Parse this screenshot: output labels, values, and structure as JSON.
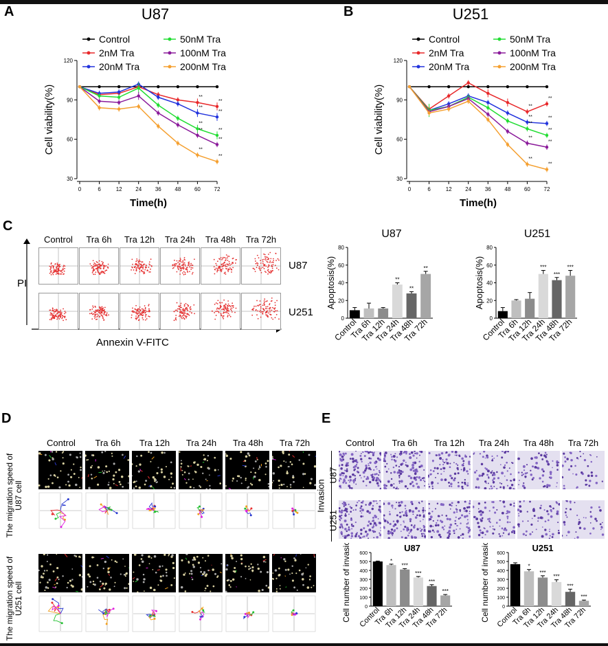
{
  "panels": {
    "A": "A",
    "B": "B",
    "C": "C",
    "D": "D",
    "E": "E"
  },
  "legend": [
    "Control",
    "2nM Tra",
    "20nM Tra",
    "50nM Tra",
    "100nM Tra",
    "200nM Tra"
  ],
  "colors": {
    "Control": "#000000",
    "2nM Tra": "#e8282a",
    "20nM Tra": "#2233dd",
    "50nM Tra": "#22dd33",
    "100nM Tra": "#8a1a9a",
    "200nM Tra": "#f5a030",
    "magenta": "#e020e0",
    "bar_black": "#000000",
    "bar_light": "#d8d8d8",
    "bar_mid": "#888888",
    "bar_dark": "#555555"
  },
  "line_charts": [
    {
      "title": "U87",
      "xlabel": "Time(h)",
      "ylabel": "Cell viability(%)",
      "x": [
        0,
        6,
        12,
        24,
        36,
        48,
        60,
        72
      ],
      "yticks": [
        30,
        60,
        90,
        120
      ],
      "ylim": [
        30,
        120
      ]
    },
    {
      "title": "U251",
      "xlabel": "Time(h)",
      "ylabel": "Cell viability(%)",
      "x": [
        0,
        6,
        12,
        24,
        36,
        48,
        60,
        72
      ],
      "yticks": [
        30,
        60,
        90,
        120
      ],
      "ylim": [
        30,
        120
      ]
    }
  ],
  "flow": {
    "columns": [
      "Control",
      "Tra 6h",
      "Tra 12h",
      "Tra 24h",
      "Tra 48h",
      "Tra 72h"
    ],
    "rows": [
      "U87",
      "U251"
    ],
    "ylabel": "PI",
    "xlabel": "Annexin V-FITC"
  },
  "apoptosis_charts": [
    {
      "title": "U87",
      "ylabel": "Apoptosis(%)",
      "yticks": [
        0,
        20,
        40,
        60,
        80
      ],
      "ylim": [
        0,
        80
      ],
      "categories": [
        "Control",
        "Tra 6h",
        "Tra 12h",
        "Tra 24h",
        "Tra 48h",
        "Tra 72h"
      ],
      "values": [
        9,
        11,
        11,
        38,
        28,
        50
      ],
      "errors": [
        3,
        6,
        1,
        2,
        2,
        3
      ],
      "sig": [
        "",
        "",
        "",
        "**",
        "**",
        "**"
      ]
    },
    {
      "title": "U251",
      "ylabel": "Apoptosis(%)",
      "yticks": [
        0,
        20,
        40,
        60,
        80
      ],
      "ylim": [
        0,
        80
      ],
      "categories": [
        "Control",
        "Tra 6h",
        "Tra 12h",
        "Tra 24h",
        "Tra 48h",
        "Tra 72h"
      ],
      "values": [
        8,
        20,
        22,
        50,
        43,
        48
      ],
      "errors": [
        4,
        1,
        7,
        4,
        3,
        6
      ],
      "sig": [
        "",
        "",
        "",
        "***",
        "***",
        "***"
      ]
    }
  ],
  "migration": {
    "columns": [
      "Control",
      "Tra 6h",
      "Tra 12h",
      "Tra 24h",
      "Tra 48h",
      "Tra 72h"
    ],
    "row1_label": "The migration speed of U87 cell",
    "row2_label": "The migration speed of U251 cell"
  },
  "invasion": {
    "columns": [
      "Control",
      "Tra 6h",
      "Tra 12h",
      "Tra 24h",
      "Tra 48h",
      "Tra 72h"
    ],
    "group_label": "Invasion",
    "rows": [
      "U87",
      "U251"
    ]
  },
  "invasion_charts": [
    {
      "title": "U87",
      "ylabel": "Cell number of invasion",
      "yticks": [
        0,
        100,
        200,
        300,
        400,
        500,
        600
      ],
      "ylim": [
        0,
        600
      ],
      "categories": [
        "Control",
        "Tra 6h",
        "Tra 12h",
        "Tra 24h",
        "Tra 48h",
        "Tra 72h"
      ],
      "values": [
        500,
        460,
        410,
        320,
        225,
        120
      ],
      "errors": [
        5,
        10,
        10,
        12,
        15,
        10
      ],
      "sig": [
        "",
        "*",
        "***",
        "***",
        "***",
        "***"
      ]
    },
    {
      "title": "U251",
      "ylabel": "Cell number of invasion",
      "yticks": [
        0,
        100,
        200,
        300,
        400,
        500,
        600
      ],
      "ylim": [
        0,
        600
      ],
      "categories": [
        "Control",
        "Tra 6h",
        "Tra 12h",
        "Tra 24h",
        "Tra 48h",
        "Tra 72h"
      ],
      "values": [
        470,
        390,
        320,
        270,
        160,
        60
      ],
      "errors": [
        15,
        20,
        20,
        25,
        30,
        8
      ],
      "sig": [
        "",
        "*",
        "***",
        "***",
        "***",
        "***"
      ]
    }
  ],
  "chart_data": [
    {
      "type": "line",
      "title": "U87",
      "xlabel": "Time(h)",
      "ylabel": "Cell viability(%)",
      "x": [
        0,
        6,
        12,
        24,
        36,
        48,
        60,
        72
      ],
      "ylim": [
        30,
        120
      ],
      "series": [
        {
          "name": "Control",
          "values": [
            100,
            100,
            100,
            100,
            100,
            100,
            100,
            100
          ],
          "errors": [
            0,
            0,
            0,
            0,
            0,
            0,
            0,
            0
          ],
          "sig": ""
        },
        {
          "name": "2nM Tra",
          "values": [
            100,
            94,
            95,
            100,
            94,
            90,
            88,
            85
          ],
          "errors": [
            0,
            2,
            2,
            2,
            2,
            2,
            3,
            3
          ],
          "sig": "**"
        },
        {
          "name": "20nM Tra",
          "values": [
            100,
            95,
            96,
            102,
            92,
            87,
            80,
            77
          ],
          "errors": [
            0,
            2,
            2,
            2,
            2,
            2,
            3,
            3
          ],
          "sig": "**"
        },
        {
          "name": "50nM Tra",
          "values": [
            100,
            93,
            92,
            99,
            86,
            76,
            68,
            63
          ],
          "errors": [
            0,
            2,
            2,
            4,
            2,
            2,
            3,
            3
          ],
          "sig": "**"
        },
        {
          "name": "100nM Tra",
          "values": [
            100,
            89,
            88,
            93,
            80,
            71,
            63,
            56
          ],
          "errors": [
            0,
            2,
            2,
            3,
            2,
            2,
            2,
            2
          ],
          "sig": "**"
        },
        {
          "name": "200nM Tra",
          "values": [
            100,
            84,
            83,
            85,
            70,
            57,
            48,
            43
          ],
          "errors": [
            0,
            2,
            2,
            2,
            2,
            2,
            2,
            2
          ],
          "sig": "**"
        }
      ]
    },
    {
      "type": "line",
      "title": "U251",
      "xlabel": "Time(h)",
      "ylabel": "Cell viability(%)",
      "x": [
        0,
        6,
        12,
        24,
        36,
        48,
        60,
        72
      ],
      "ylim": [
        30,
        120
      ],
      "series": [
        {
          "name": "Control",
          "values": [
            100,
            100,
            100,
            100,
            100,
            100,
            100,
            100
          ],
          "errors": [
            0,
            0,
            0,
            0,
            0,
            0,
            0,
            0
          ],
          "sig": ""
        },
        {
          "name": "2nM Tra",
          "values": [
            100,
            83,
            93,
            103,
            95,
            88,
            81,
            87
          ],
          "errors": [
            0,
            2,
            2,
            2,
            3,
            3,
            2,
            2
          ],
          "sig": "**"
        },
        {
          "name": "20nM Tra",
          "values": [
            100,
            82,
            87,
            93,
            88,
            80,
            73,
            72
          ],
          "errors": [
            0,
            2,
            2,
            2,
            2,
            2,
            2,
            2
          ],
          "sig": "**"
        },
        {
          "name": "50nM Tra",
          "values": [
            100,
            82,
            85,
            92,
            84,
            74,
            68,
            63
          ],
          "errors": [
            0,
            5,
            2,
            2,
            2,
            2,
            2,
            2
          ],
          "sig": "**"
        },
        {
          "name": "100nM Tra",
          "values": [
            100,
            81,
            85,
            91,
            79,
            66,
            57,
            54
          ],
          "errors": [
            0,
            2,
            2,
            2,
            2,
            2,
            2,
            2
          ],
          "sig": "**"
        },
        {
          "name": "200nM Tra",
          "values": [
            100,
            80,
            83,
            89,
            75,
            56,
            41,
            37
          ],
          "errors": [
            0,
            2,
            2,
            2,
            2,
            2,
            2,
            2
          ],
          "sig": "**"
        }
      ]
    },
    {
      "type": "bar",
      "title": "U87",
      "ylabel": "Apoptosis(%)",
      "categories": [
        "Control",
        "Tra 6h",
        "Tra 12h",
        "Tra 24h",
        "Tra 48h",
        "Tra 72h"
      ],
      "values": [
        9,
        11,
        11,
        38,
        28,
        50
      ],
      "ylim": [
        0,
        80
      ]
    },
    {
      "type": "bar",
      "title": "U251",
      "ylabel": "Apoptosis(%)",
      "categories": [
        "Control",
        "Tra 6h",
        "Tra 12h",
        "Tra 24h",
        "Tra 48h",
        "Tra 72h"
      ],
      "values": [
        8,
        20,
        22,
        50,
        43,
        48
      ],
      "ylim": [
        0,
        80
      ]
    },
    {
      "type": "bar",
      "title": "U87",
      "ylabel": "Cell number of invasion",
      "categories": [
        "Control",
        "Tra 6h",
        "Tra 12h",
        "Tra 24h",
        "Tra 48h",
        "Tra 72h"
      ],
      "values": [
        500,
        460,
        410,
        320,
        225,
        120
      ],
      "ylim": [
        0,
        600
      ]
    },
    {
      "type": "bar",
      "title": "U251",
      "ylabel": "Cell number of invasion",
      "categories": [
        "Control",
        "Tra 6h",
        "Tra 12h",
        "Tra 24h",
        "Tra 48h",
        "Tra 72h"
      ],
      "values": [
        470,
        390,
        320,
        270,
        160,
        60
      ],
      "ylim": [
        0,
        600
      ]
    }
  ]
}
